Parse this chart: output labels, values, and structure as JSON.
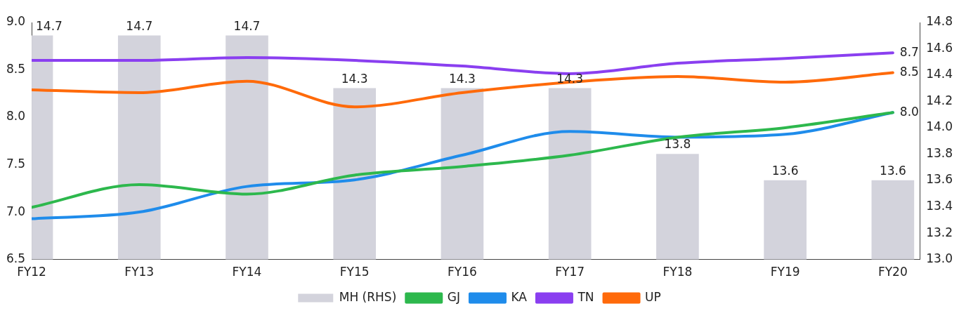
{
  "chart_data": {
    "type": "line",
    "categories": [
      "FY12",
      "FY13",
      "FY14",
      "FY15",
      "FY16",
      "FY17",
      "FY18",
      "FY19",
      "FY20"
    ],
    "series": [
      {
        "name": "MH (RHS)",
        "type": "bar",
        "axis": "y2",
        "color": "#d3d3dc",
        "values": [
          14.7,
          14.7,
          14.7,
          14.3,
          14.3,
          14.3,
          13.8,
          13.6,
          13.6
        ],
        "data_labels": true
      },
      {
        "name": "GJ",
        "color": "#2db84d",
        "values": [
          7.05,
          7.29,
          7.19,
          7.39,
          7.48,
          7.6,
          7.79,
          7.89,
          8.05
        ]
      },
      {
        "name": "KA",
        "color": "#1f8ceb",
        "values": [
          6.93,
          7.0,
          7.27,
          7.34,
          7.6,
          7.85,
          7.79,
          7.82,
          8.05
        ],
        "value_labels": [
          null,
          null,
          null,
          null,
          null,
          null,
          null,
          null,
          "8.0"
        ]
      },
      {
        "name": "TN",
        "color": "#8a3ff0",
        "values": [
          8.6,
          8.6,
          8.63,
          8.6,
          8.54,
          8.46,
          8.57,
          8.62,
          8.68
        ],
        "value_labels": [
          null,
          null,
          null,
          null,
          null,
          null,
          null,
          null,
          "8.7"
        ]
      },
      {
        "name": "UP",
        "color": "#ff6a0a",
        "values": [
          8.29,
          8.26,
          8.38,
          8.11,
          8.26,
          8.37,
          8.43,
          8.37,
          8.47
        ],
        "value_labels": [
          null,
          null,
          null,
          null,
          null,
          null,
          null,
          null,
          "8.5"
        ]
      }
    ],
    "ylim": [
      6.5,
      9.0
    ],
    "yticks": [
      {
        "value": 6.5,
        "label": "6.5"
      },
      {
        "value": 7,
        "label": "7.0"
      },
      {
        "value": 7.5,
        "label": "7.5"
      },
      {
        "value": 8,
        "label": "8.0"
      },
      {
        "value": 8.5,
        "label": "8.5"
      },
      {
        "value": 9,
        "label": "9.0"
      }
    ],
    "y2lim": [
      13.0,
      14.8
    ],
    "y2ticks": [
      {
        "value": 13,
        "label": "13.0"
      },
      13.2,
      13.4,
      13.6,
      13.8,
      {
        "value": 14,
        "label": "14.0"
      },
      14.2,
      14.4,
      14.6,
      14.8
    ],
    "grid": false,
    "legend": "bottom",
    "marker": "none",
    "line_style": "solid"
  }
}
